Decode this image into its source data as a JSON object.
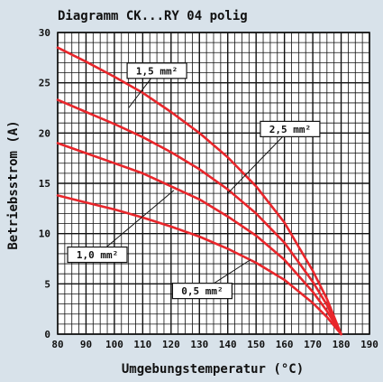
{
  "chart_data": {
    "type": "line",
    "title": "Diagramm CK...RY 04 polig",
    "xlabel": "Umgebungstemperatur (°C)",
    "ylabel": "Betriebsstrom (A)",
    "xlim": [
      80,
      190
    ],
    "ylim": [
      0,
      30
    ],
    "x_ticks": [
      80,
      90,
      100,
      110,
      120,
      130,
      140,
      150,
      160,
      170,
      180,
      190
    ],
    "y_ticks": [
      0,
      5,
      10,
      15,
      20,
      25,
      30
    ],
    "x_tick_labels": [
      "80",
      "90",
      "100",
      "110",
      "120",
      "130",
      "140",
      "150",
      "160",
      "170",
      "180",
      "190"
    ],
    "y_tick_labels": [
      "0",
      "5",
      "10",
      "15",
      "20",
      "25",
      "30"
    ],
    "grid": true,
    "line_color": "#e8262b",
    "series": [
      {
        "name": "1,5 mm²",
        "x": [
          80,
          90,
          100,
          110,
          120,
          130,
          140,
          150,
          160,
          170,
          175,
          180
        ],
        "y": [
          28.5,
          27.1,
          25.6,
          24.0,
          22.1,
          20.0,
          17.6,
          14.7,
          11.1,
          6.3,
          3.5,
          0
        ]
      },
      {
        "name": "2,5 mm²",
        "x": [
          80,
          90,
          100,
          110,
          120,
          130,
          140,
          150,
          160,
          170,
          175,
          180
        ],
        "y": [
          23.3,
          22.1,
          20.9,
          19.6,
          18.1,
          16.4,
          14.4,
          12.0,
          9.1,
          5.2,
          2.9,
          0
        ]
      },
      {
        "name": "1,0 mm²",
        "x": [
          80,
          90,
          100,
          110,
          120,
          130,
          140,
          150,
          160,
          170,
          175,
          180
        ],
        "y": [
          19.0,
          18.0,
          17.0,
          16.0,
          14.7,
          13.4,
          11.7,
          9.8,
          7.4,
          4.2,
          2.3,
          0
        ]
      },
      {
        "name": "0,5 mm²",
        "x": [
          80,
          90,
          100,
          110,
          120,
          130,
          140,
          150,
          160,
          170,
          175,
          180
        ],
        "y": [
          13.8,
          13.1,
          12.4,
          11.6,
          10.7,
          9.7,
          8.5,
          7.1,
          5.4,
          3.1,
          1.7,
          0
        ]
      }
    ],
    "annotations": [
      {
        "series": 0,
        "text": "1,5 mm²",
        "point": [
          105,
          22.5
        ],
        "box_at": [
          115,
          26.2
        ]
      },
      {
        "series": 1,
        "text": "2,5 mm²",
        "point": [
          140,
          14.0
        ],
        "box_at": [
          162,
          20.4
        ]
      },
      {
        "series": 2,
        "text": "1,0 mm²",
        "point": [
          121,
          14.3
        ],
        "box_at": [
          94,
          7.9
        ]
      },
      {
        "series": 3,
        "text": "0,5 mm²",
        "point": [
          148,
          7.4
        ],
        "box_at": [
          131,
          4.3
        ]
      }
    ]
  }
}
